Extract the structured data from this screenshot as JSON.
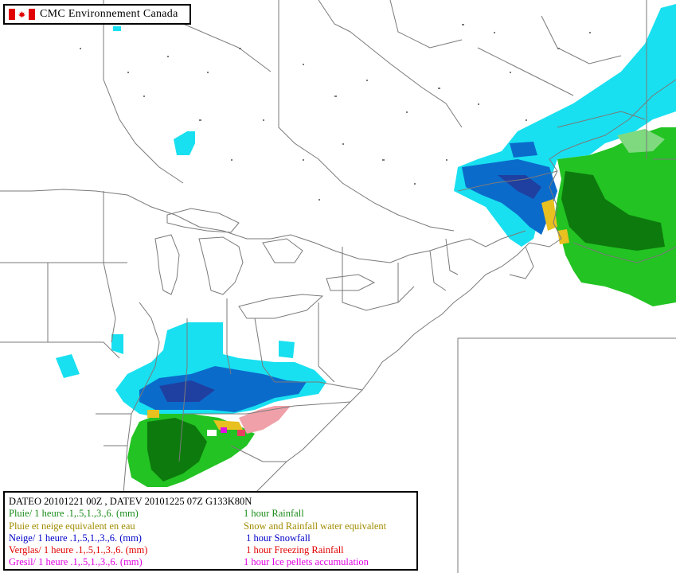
{
  "title": "CMC Environnement Canada",
  "colors": {
    "rain_light": "#7fd97f",
    "rain": "#22c322",
    "rain_heavy": "#0d7a0d",
    "snow_light": "#18e0f0",
    "snow": "#0b6bcb",
    "snow_heavy": "#1f40a0",
    "freezing_rain": "#f0a0a8",
    "freezing_rain_heavy": "#e84060",
    "ice_pellets": "#e010e0",
    "mixed": "#e8c020",
    "borders": "#7a7a7a"
  },
  "legend": {
    "header": "DATEO  20101221 00Z  , DATEV  20101225 07Z    G133K80N",
    "rows": [
      {
        "fr": "Pluie/ 1 heure .1,.5,1.,3.,6. (mm)",
        "en": "1 hour Rainfall",
        "color": "#1a8c1a"
      },
      {
        "fr": "Pluie et neige equivalent en eau",
        "en": "Snow and Rainfall water equivalent",
        "color": "#a08c00"
      },
      {
        "fr": "Neige/ 1 heure .1,.5,1.,3.,6. (mm)",
        "en": " 1 hour Snowfall",
        "color": "#0000c8"
      },
      {
        "fr": "Verglas/ 1 heure .1,.5,1.,3.,6. (mm)",
        "en": " 1 hour Freezing Rainfall",
        "color": "#e00000"
      },
      {
        "fr": "Gresil/ 1 heure .1,.5,1.,3.,6. (mm)",
        "en": "1 hour Ice pellets accumulation",
        "color": "#e000e0"
      }
    ]
  }
}
